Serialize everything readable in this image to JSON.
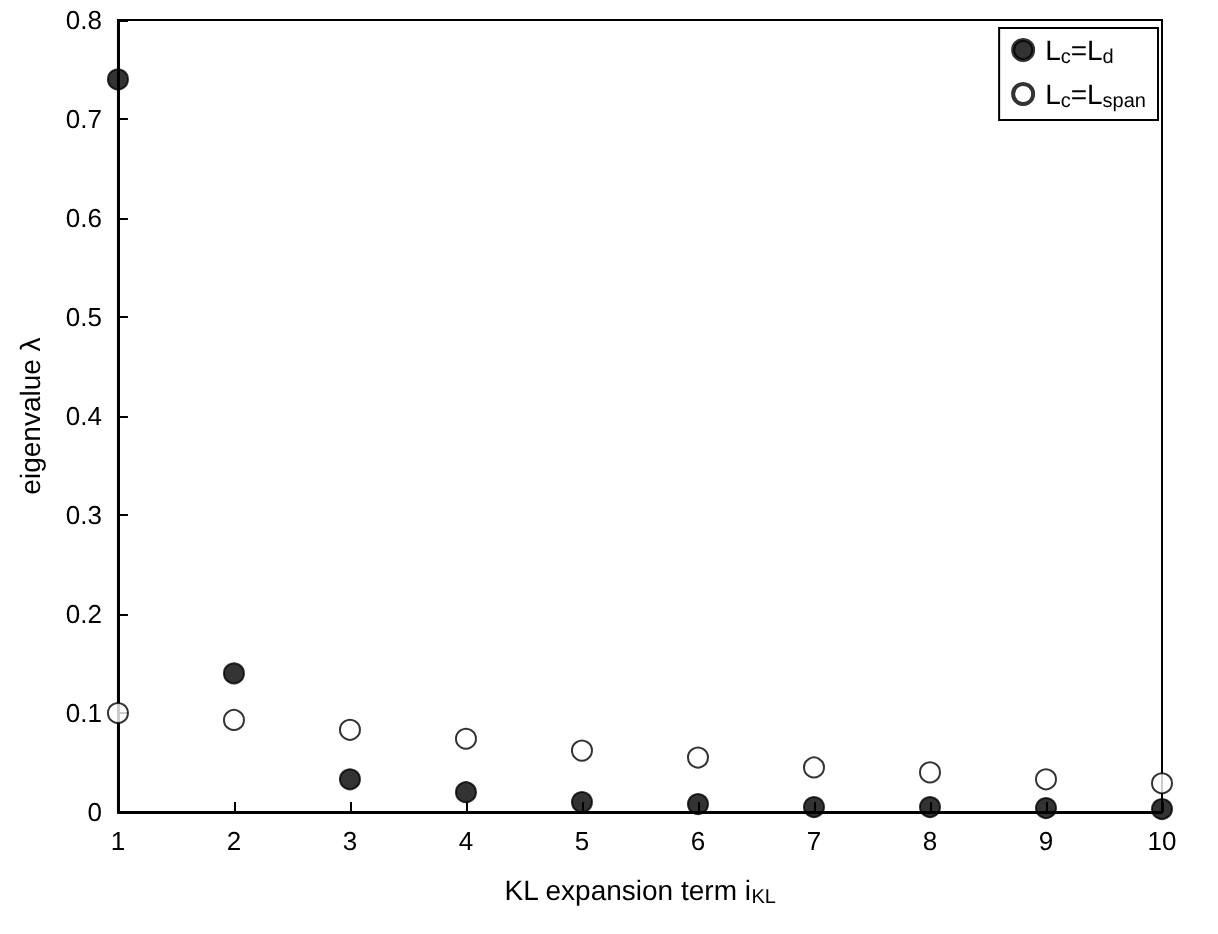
{
  "chart_data": {
    "type": "scatter",
    "xlabel": "KL expansion term i$_{KL}$",
    "ylabel": "eigenvalue λ",
    "x": [
      1,
      2,
      3,
      4,
      5,
      6,
      7,
      8,
      9,
      10
    ],
    "series": [
      {
        "name": "L$_{c}$=L$_{d}$",
        "color": "#000000",
        "values": [
          0.74,
          0.14,
          0.033,
          0.02,
          0.01,
          0.008,
          0.005,
          0.005,
          0.004,
          0.003
        ]
      },
      {
        "name": "L$_{c}$=L$_{span}$",
        "color": "#ffffff",
        "values": [
          0.1,
          0.093,
          0.083,
          0.074,
          0.062,
          0.055,
          0.045,
          0.04,
          0.033,
          0.029
        ]
      }
    ],
    "xlim": [
      1,
      10
    ],
    "xticks": [
      1,
      2,
      3,
      4,
      5,
      6,
      7,
      8,
      9,
      10
    ],
    "ylim": [
      0,
      0.8
    ],
    "yticks": [
      0,
      0.1,
      0.2,
      0.3,
      0.4,
      0.5,
      0.6,
      0.7,
      0.8
    ],
    "grid": false,
    "legend": "top right",
    "marker": "circle"
  }
}
